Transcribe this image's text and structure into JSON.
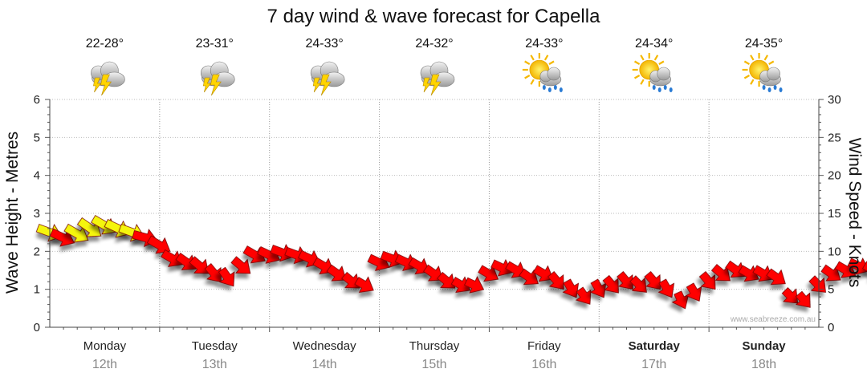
{
  "chart_data": {
    "type": "line",
    "title": "7 day wind & wave forecast for Capella",
    "left_axis": {
      "label": "Wave Height - Metres",
      "ylim": [
        0,
        6
      ],
      "ticks": [
        "0",
        "1",
        "2",
        "3",
        "4",
        "5",
        "6"
      ]
    },
    "right_axis": {
      "label": "Wind Speed - Knots",
      "ylim": [
        0,
        30
      ],
      "ticks": [
        "0",
        "5",
        "10",
        "15",
        "20",
        "25",
        "30"
      ]
    },
    "grid": true,
    "days": [
      {
        "day": "Monday",
        "date": "12th",
        "temp": "22-28°",
        "icon": "thunderstorm-icon",
        "weekend": false
      },
      {
        "day": "Tuesday",
        "date": "13th",
        "temp": "23-31°",
        "icon": "thunderstorm-icon",
        "weekend": false
      },
      {
        "day": "Wednesday",
        "date": "14th",
        "temp": "24-33°",
        "icon": "thunderstorm-icon",
        "weekend": false
      },
      {
        "day": "Thursday",
        "date": "15th",
        "temp": "24-32°",
        "icon": "thunderstorm-icon",
        "weekend": false
      },
      {
        "day": "Friday",
        "date": "16th",
        "temp": "24-33°",
        "icon": "sun-rain-icon",
        "weekend": false
      },
      {
        "day": "Saturday",
        "date": "17th",
        "temp": "24-34°",
        "icon": "sun-rain-icon",
        "weekend": true
      },
      {
        "day": "Sunday",
        "date": "18th",
        "temp": "24-35°",
        "icon": "sun-rain-icon",
        "weekend": true
      }
    ],
    "wind_arrow_colors": {
      "low": "#ff0000",
      "high": "#f5f50a"
    },
    "series": [
      {
        "name": "Wind",
        "unit": "knots",
        "points": [
          [
            0.0,
            12.5,
            290
          ],
          [
            0.12,
            11.8,
            295
          ],
          [
            0.25,
            12.3,
            300
          ],
          [
            0.37,
            13.0,
            305
          ],
          [
            0.5,
            13.4,
            300
          ],
          [
            0.62,
            13.0,
            295
          ],
          [
            0.75,
            12.5,
            290
          ],
          [
            0.87,
            11.8,
            285
          ],
          [
            1.0,
            10.8,
            300
          ],
          [
            1.12,
            9.0,
            300
          ],
          [
            1.25,
            8.5,
            305
          ],
          [
            1.37,
            8.0,
            310
          ],
          [
            1.5,
            7.0,
            320
          ],
          [
            1.62,
            6.5,
            325
          ],
          [
            1.75,
            8.0,
            310
          ],
          [
            1.87,
            9.5,
            300
          ],
          [
            2.0,
            9.5,
            295
          ],
          [
            2.12,
            9.8,
            290
          ],
          [
            2.25,
            9.5,
            290
          ],
          [
            2.37,
            9.0,
            295
          ],
          [
            2.5,
            8.0,
            300
          ],
          [
            2.62,
            7.0,
            305
          ],
          [
            2.75,
            6.0,
            310
          ],
          [
            2.87,
            5.5,
            300
          ],
          [
            3.0,
            8.5,
            295
          ],
          [
            3.12,
            9.0,
            290
          ],
          [
            3.25,
            8.5,
            295
          ],
          [
            3.37,
            8.0,
            300
          ],
          [
            3.5,
            7.0,
            305
          ],
          [
            3.62,
            6.0,
            310
          ],
          [
            3.75,
            5.5,
            300
          ],
          [
            3.87,
            5.5,
            295
          ],
          [
            4.0,
            7.0,
            300
          ],
          [
            4.12,
            7.8,
            295
          ],
          [
            4.25,
            7.5,
            300
          ],
          [
            4.37,
            6.5,
            305
          ],
          [
            4.5,
            7.0,
            300
          ],
          [
            4.62,
            6.0,
            320
          ],
          [
            4.75,
            5.0,
            330
          ],
          [
            4.87,
            4.0,
            325
          ],
          [
            5.0,
            5.0,
            330
          ],
          [
            5.12,
            5.5,
            320
          ],
          [
            5.25,
            6.0,
            320
          ],
          [
            5.37,
            5.5,
            315
          ],
          [
            5.5,
            6.0,
            320
          ],
          [
            5.62,
            5.0,
            330
          ],
          [
            5.75,
            3.5,
            335
          ],
          [
            5.87,
            4.5,
            330
          ],
          [
            6.0,
            6.0,
            320
          ],
          [
            6.12,
            7.0,
            310
          ],
          [
            6.25,
            7.5,
            305
          ],
          [
            6.37,
            7.0,
            300
          ],
          [
            6.5,
            7.0,
            300
          ],
          [
            6.62,
            6.5,
            305
          ],
          [
            6.75,
            4.0,
            315
          ],
          [
            6.87,
            3.5,
            320
          ],
          [
            7.0,
            5.5,
            315
          ],
          [
            7.12,
            7.0,
            305
          ],
          [
            7.25,
            7.5,
            300
          ],
          [
            7.37,
            8.0,
            295
          ],
          [
            7.5,
            7.5,
            300
          ],
          [
            7.62,
            7.0,
            305
          ],
          [
            7.75,
            7.0,
            305
          ],
          [
            7.87,
            6.5,
            305
          ],
          [
            8.0,
            8.0,
            295
          ]
        ]
      }
    ]
  },
  "watermark": "www.seabreeze.com.au"
}
